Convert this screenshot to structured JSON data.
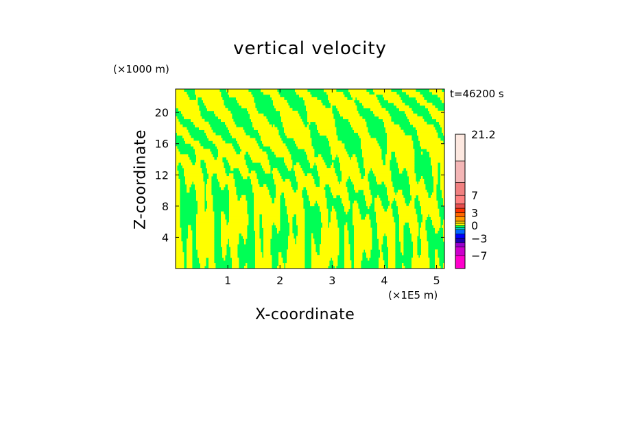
{
  "chart_data": {
    "type": "heatmap",
    "title": "vertical velocity",
    "xlabel": "X-coordinate",
    "ylabel": "Z-coordinate",
    "x_unit": "(×1E5 m)",
    "y_unit": "(×1000 m)",
    "timestamp": "t=46200 s",
    "x_range": [
      0,
      5.15
    ],
    "y_range": [
      0,
      23
    ],
    "x_ticks": [
      1,
      2,
      3,
      4,
      5
    ],
    "x_tick_labels": [
      "1",
      "2",
      "3",
      "4",
      "5"
    ],
    "y_ticks": [
      4,
      8,
      12,
      16,
      20
    ],
    "y_tick_labels": [
      "4",
      "8",
      "12",
      "16",
      "20"
    ],
    "field_description": "Alternating bands of near-zero positive and negative vertical velocity",
    "field_colors": {
      "positive_small": "#ffff00",
      "negative_small": "#00ff55"
    },
    "colorbar": {
      "min": -10,
      "max": 21.2,
      "levels": [
        {
          "from": -10,
          "to": -7,
          "color": "#ff00cc"
        },
        {
          "from": -7,
          "to": -5,
          "color": "#cc00cc"
        },
        {
          "from": -5,
          "to": -4,
          "color": "#9900cc"
        },
        {
          "from": -4,
          "to": -3,
          "color": "#1a00b3"
        },
        {
          "from": -3,
          "to": -2,
          "color": "#0000ff"
        },
        {
          "from": -2,
          "to": -1,
          "color": "#0066ff"
        },
        {
          "from": -1,
          "to": -0.5,
          "color": "#00cccc"
        },
        {
          "from": -0.5,
          "to": 0,
          "color": "#00ff55"
        },
        {
          "from": 0,
          "to": 0.5,
          "color": "#ffff00"
        },
        {
          "from": 0.5,
          "to": 1,
          "color": "#ffcc00"
        },
        {
          "from": 1,
          "to": 2,
          "color": "#ff9900"
        },
        {
          "from": 2,
          "to": 3,
          "color": "#ff6600"
        },
        {
          "from": 3,
          "to": 4,
          "color": "#ff3300"
        },
        {
          "from": 4,
          "to": 5,
          "color": "#e64d4d"
        },
        {
          "from": 5,
          "to": 7,
          "color": "#ff8080"
        },
        {
          "from": 7,
          "to": 10,
          "color": "#f08080"
        },
        {
          "from": 10,
          "to": 15,
          "color": "#f4b6b6"
        },
        {
          "from": 15,
          "to": 21.2,
          "color": "#fde8e0"
        }
      ],
      "tick_values": [
        21.2,
        7,
        3,
        0,
        -3,
        -7
      ],
      "tick_labels": [
        "21.2",
        "7",
        "3",
        "0",
        "−3",
        "−7"
      ]
    }
  }
}
